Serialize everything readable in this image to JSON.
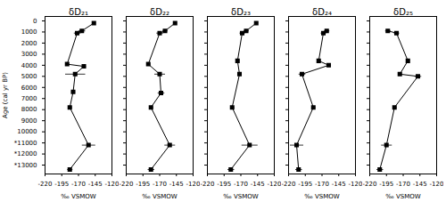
{
  "chart_data": [
    {
      "type": "line",
      "title": "δD₂₁",
      "xlabel": "‰ VSMOW",
      "ylabel": "Age (cal yr BP)",
      "xlim": [
        -220,
        -120
      ],
      "ylim": [
        13800,
        -400
      ],
      "xticks": [
        -220,
        -195,
        -170,
        -145,
        -120
      ],
      "yticks": [
        0,
        1000,
        2000,
        3000,
        4000,
        5000,
        6000,
        7000,
        8000,
        9000,
        10000,
        {
          "value": 11000,
          "label": "*11000"
        },
        {
          "value": 12000,
          "label": "*12000"
        },
        {
          "value": 13000,
          "label": "*13000"
        }
      ],
      "x": [
        -147,
        -165,
        -172,
        -187,
        -162,
        -175,
        -178,
        -183,
        -155,
        -183
      ],
      "y": [
        200,
        900,
        1100,
        3900,
        4100,
        4800,
        6400,
        7800,
        11200,
        13400
      ],
      "xerr": [
        2,
        5,
        5,
        3,
        3,
        15,
        3,
        3,
        10,
        4
      ],
      "color": "black",
      "marker": "square",
      "line_style": "solid"
    },
    {
      "type": "line",
      "title": "δD₂₂",
      "xlabel": "‰ VSMOW",
      "xlim": [
        -220,
        -120
      ],
      "ylim": [
        13800,
        -400
      ],
      "xticks": [
        -220,
        -195,
        -170,
        -145,
        -120
      ],
      "yticks": [
        0,
        1000,
        2000,
        3000,
        4000,
        5000,
        6000,
        7000,
        8000,
        9000,
        10000,
        11000,
        12000,
        13000
      ],
      "x": [
        -147,
        -162,
        -170,
        -187,
        -170,
        -168,
        -183,
        -155,
        -183
      ],
      "y": [
        200,
        900,
        1100,
        3900,
        4800,
        6500,
        7800,
        11200,
        13400
      ],
      "xerr": [
        2,
        4,
        5,
        3,
        8,
        5,
        3,
        8,
        5
      ],
      "color": "black",
      "marker": "square",
      "line_style": "solid",
      "tick_labels": "x"
    },
    {
      "type": "line",
      "title": "δD₂₃",
      "xlabel": "‰ VSMOW",
      "xlim": [
        -220,
        -120
      ],
      "ylim": [
        13800,
        -400
      ],
      "xticks": [
        -220,
        -195,
        -170,
        -145,
        -120
      ],
      "yticks": [
        0,
        1000,
        2000,
        3000,
        4000,
        5000,
        6000,
        7000,
        8000,
        9000,
        10000,
        11000,
        12000,
        13000
      ],
      "x": [
        -147,
        -162,
        -168,
        -175,
        -172,
        -183,
        -157,
        -185
      ],
      "y": [
        200,
        900,
        1100,
        3600,
        4800,
        7800,
        11200,
        13400
      ],
      "xerr": [
        2,
        4,
        4,
        3,
        3,
        3,
        12,
        5
      ],
      "color": "black",
      "marker": "square",
      "line_style": "solid",
      "tick_labels": "x"
    },
    {
      "type": "line",
      "title": "δD₂₄",
      "xlabel": "‰ VSMOW",
      "xlim": [
        -220,
        -120
      ],
      "ylim": [
        13800,
        -400
      ],
      "xticks": [
        -220,
        -195,
        -170,
        -145,
        -120
      ],
      "yticks": [
        0,
        1000,
        2000,
        3000,
        4000,
        5000,
        6000,
        7000,
        8000,
        9000,
        10000,
        11000,
        12000,
        13000
      ],
      "x": [
        -163,
        -168,
        -175,
        -160,
        -200,
        -183,
        -208,
        -205
      ],
      "y": [
        900,
        1100,
        3600,
        4000,
        4800,
        7800,
        11200,
        13400
      ],
      "xerr": [
        4,
        4,
        3,
        3,
        5,
        3,
        10,
        5
      ],
      "color": "black",
      "marker": "square",
      "line_style": "solid",
      "tick_labels": "x"
    },
    {
      "type": "line",
      "title": "δD₂₅",
      "xlabel": "‰ VSMOW",
      "xlim": [
        -220,
        -120
      ],
      "ylim": [
        13800,
        -400
      ],
      "xticks": [
        -220,
        -195,
        -170,
        -145,
        -120
      ],
      "yticks": [
        0,
        1000,
        2000,
        3000,
        4000,
        5000,
        6000,
        7000,
        8000,
        9000,
        10000,
        11000,
        12000,
        13000
      ],
      "x": [
        -193,
        -180,
        -163,
        -175,
        -148,
        -183,
        -195,
        -205
      ],
      "y": [
        900,
        1100,
        3600,
        4800,
        5000,
        7800,
        11200,
        13400
      ],
      "xerr": [
        4,
        4,
        3,
        3,
        5,
        3,
        8,
        5
      ],
      "color": "black",
      "marker": "square",
      "line_style": "solid",
      "tick_labels": "x"
    }
  ]
}
